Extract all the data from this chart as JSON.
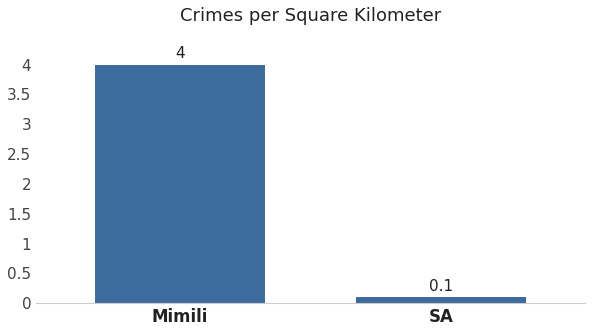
{
  "categories": [
    "Mimili",
    "SA"
  ],
  "values": [
    4,
    0.1
  ],
  "bar_color": "#3d6b9e",
  "title": "Crimes per Square Kilometer",
  "title_fontsize": 13,
  "label_fontsize": 12,
  "tick_fontsize": 11,
  "annotation_fontsize": 11,
  "ylim": [
    0,
    4.5
  ],
  "yticks": [
    0,
    0.5,
    1,
    1.5,
    2,
    2.5,
    3,
    3.5,
    4
  ],
  "bar_width": 0.65,
  "background_color": "#ffffff",
  "figsize": [
    5.92,
    3.33
  ],
  "dpi": 100
}
